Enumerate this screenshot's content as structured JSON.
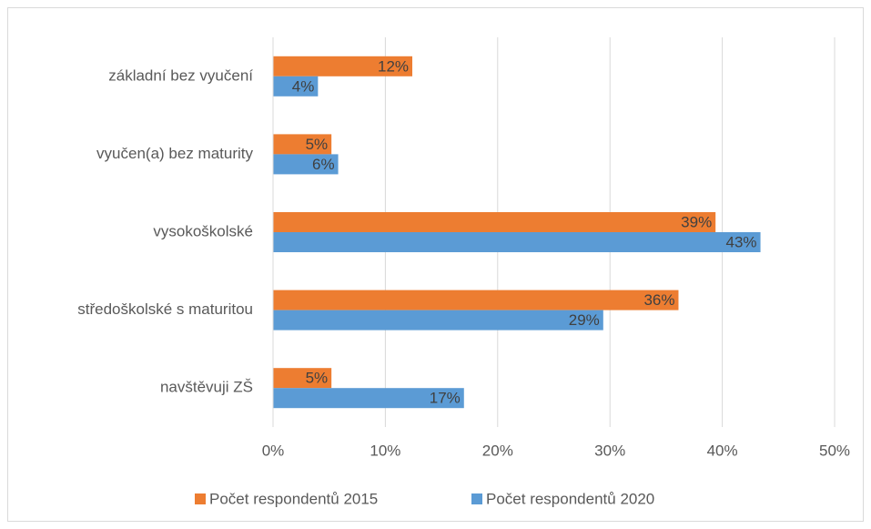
{
  "chart_data": {
    "type": "barh",
    "categories": [
      "základní bez vyučení",
      "vyučen(a) bez maturity",
      "vysokoškolské",
      "středoškolské s maturitou",
      "navštěvuji ZŠ"
    ],
    "series": [
      {
        "name": "Počet respondentů 2015",
        "color": "#ed7d31",
        "values": [
          12.4,
          5.2,
          39.4,
          36.1,
          5.2
        ],
        "value_labels": [
          "12%",
          "5%",
          "39%",
          "36%",
          "5%"
        ]
      },
      {
        "name": "Počet respondentů 2020",
        "color": "#5b9bd5",
        "values": [
          4.0,
          5.8,
          43.4,
          29.4,
          17.0
        ],
        "value_labels": [
          "4%",
          "6%",
          "43%",
          "29%",
          "17%"
        ]
      }
    ],
    "xlim": [
      0,
      50
    ],
    "xticks": [
      {
        "value": 0,
        "label": "0%"
      },
      {
        "value": 10,
        "label": "10%"
      },
      {
        "value": 20,
        "label": "20%"
      },
      {
        "value": 30,
        "label": "30%"
      },
      {
        "value": 40,
        "label": "40%"
      },
      {
        "value": 50,
        "label": "50%"
      }
    ],
    "grid": true,
    "legend": "bottom"
  }
}
